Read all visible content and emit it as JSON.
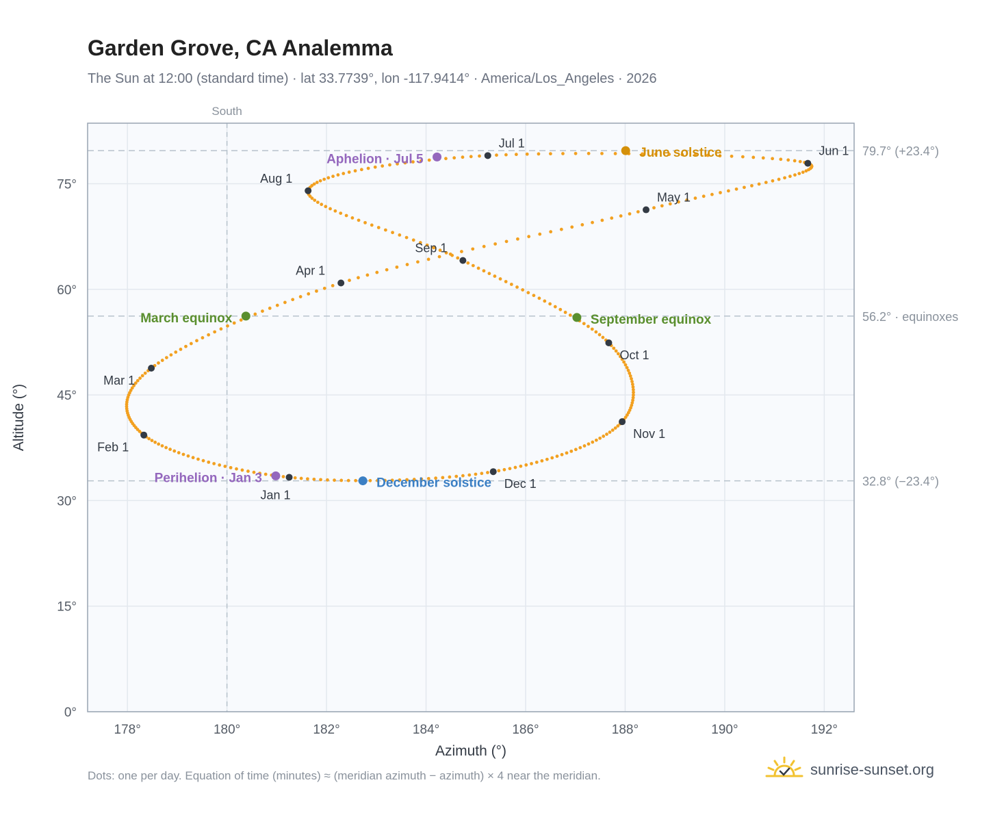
{
  "title": "Garden Grove, CA Analemma",
  "subtitle": "The Sun at 12:00 (standard time) · lat 33.7739°, lon -117.9414° · America/Los_Angeles · 2026",
  "footnote": "Dots: one per day. Equation of time (minutes) ≈ (meridian azimuth − azimuth) × 4 near the meridian.",
  "brand": "sunrise-sunset.org",
  "colors": {
    "path": "#f2a020",
    "month_marker": "#333a44",
    "equinox": "#5a8f2e",
    "june_solstice": "#d4900a",
    "december_solstice": "#3b7fc4",
    "apsis": "#9467bd",
    "reference_line": "#b7c2cc"
  },
  "chart_data": {
    "type": "scatter",
    "xlabel": "Azimuth (°)",
    "ylabel": "Altitude (°)",
    "xlim": [
      177.2,
      192.6
    ],
    "ylim": [
      0,
      83.6
    ],
    "xticks": [
      178,
      180,
      182,
      184,
      186,
      188,
      190,
      192
    ],
    "xtick_labels": [
      "178°",
      "180°",
      "182°",
      "184°",
      "186°",
      "188°",
      "190°",
      "192°"
    ],
    "yticks": [
      0,
      15,
      30,
      45,
      60,
      75
    ],
    "ytick_labels": [
      "0°",
      "15°",
      "30°",
      "45°",
      "60°",
      "75°"
    ],
    "grid": true,
    "meridian": {
      "azimuth": 180,
      "label": "South"
    },
    "reference_lines": [
      {
        "altitude": 79.7,
        "label": "79.7° (+23.4°)"
      },
      {
        "altitude": 56.2,
        "label": "56.2° · equinoxes"
      },
      {
        "altitude": 32.8,
        "label": "32.8° (−23.4°)"
      }
    ],
    "daily_path_monthly_anchors": {
      "days": [
        "Jan 1",
        "Feb 1",
        "Mar 1",
        "Apr 1",
        "May 1",
        "Jun 1",
        "Jul 1",
        "Aug 1",
        "Sep 1",
        "Oct 1",
        "Nov 1",
        "Dec 1",
        "Jan 1"
      ],
      "azimuth": [
        181.25,
        178.33,
        178.48,
        182.29,
        188.42,
        191.67,
        185.24,
        181.63,
        184.74,
        187.67,
        187.94,
        185.35,
        181.25
      ],
      "altitude": [
        33.3,
        39.3,
        48.8,
        60.9,
        71.3,
        77.9,
        79.0,
        74.0,
        64.1,
        52.4,
        41.2,
        34.1,
        33.3
      ]
    },
    "month_markers": [
      {
        "label": "Jan 1",
        "az": 181.25,
        "alt": 33.3
      },
      {
        "label": "Feb 1",
        "az": 178.33,
        "alt": 39.3
      },
      {
        "label": "Mar 1",
        "az": 178.48,
        "alt": 48.8
      },
      {
        "label": "Apr 1",
        "az": 182.29,
        "alt": 60.9
      },
      {
        "label": "May 1",
        "az": 188.42,
        "alt": 71.3
      },
      {
        "label": "Jun 1",
        "az": 191.67,
        "alt": 77.9
      },
      {
        "label": "Jul 1",
        "az": 185.24,
        "alt": 79.0
      },
      {
        "label": "Aug 1",
        "az": 181.63,
        "alt": 74.0
      },
      {
        "label": "Sep 1",
        "az": 184.74,
        "alt": 64.1
      },
      {
        "label": "Oct 1",
        "az": 187.67,
        "alt": 52.4
      },
      {
        "label": "Nov 1",
        "az": 187.94,
        "alt": 41.2
      },
      {
        "label": "Dec 1",
        "az": 185.35,
        "alt": 34.1
      }
    ],
    "events": [
      {
        "label": "March equinox",
        "az": 180.38,
        "alt": 56.2,
        "color_key": "equinox"
      },
      {
        "label": "September equinox",
        "az": 187.03,
        "alt": 56.0,
        "color_key": "equinox"
      },
      {
        "label": "June solstice",
        "az": 188.01,
        "alt": 79.7,
        "color_key": "june_solstice"
      },
      {
        "label": "December solstice",
        "az": 182.73,
        "alt": 32.8,
        "color_key": "december_solstice"
      },
      {
        "label": "Aphelion · Jul 5",
        "az": 184.22,
        "alt": 78.8,
        "color_key": "apsis"
      },
      {
        "label": "Perihelion · Jan 3",
        "az": 180.98,
        "alt": 33.5,
        "color_key": "apsis"
      }
    ]
  }
}
